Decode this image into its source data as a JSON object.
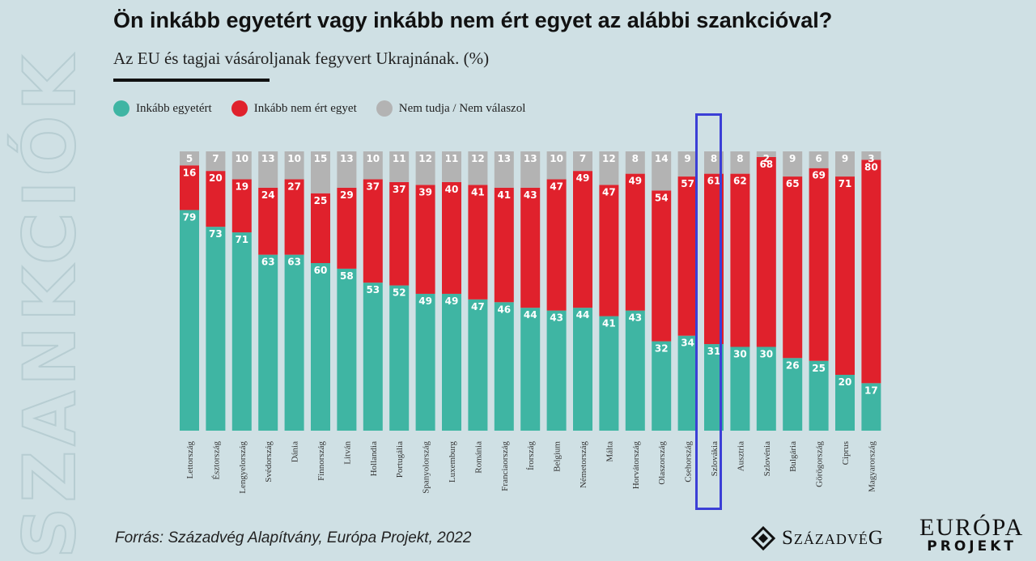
{
  "watermark": "SZANKCIÓK",
  "colors": {
    "background": "#cfe0e4",
    "agree": "#3fb5a3",
    "disagree": "#e0212c",
    "unknown": "#b3b3b3",
    "highlight": "#3b3fd6"
  },
  "source": "Forrás: Századvég Alapítvány, Európa Projekt, 2022",
  "logos": {
    "szazadveg": "SzázadvéG",
    "europa_line1": "EURÓPA",
    "europa_line2": "PROJEKT"
  },
  "chart_data": {
    "type": "bar",
    "stacked": true,
    "title": "Ön inkább egyetért vagy inkább nem ért egyet az alábbi szankcióval?",
    "subtitle": "Az EU és tagjai vásároljanak fegyvert Ukrajnának. (%)",
    "legend_position": "top-left",
    "highlighted_category": "Szlovákia",
    "categories": [
      "Lettország",
      "Észtország",
      "Lengyelország",
      "Svédország",
      "Dánia",
      "Finnország",
      "Litván",
      "Hollandia",
      "Portugália",
      "Spanyolország",
      "Luxemburg",
      "Románia",
      "Franciaország",
      "Írország",
      "Belgium",
      "Németország",
      "Málta",
      "Horvátország",
      "Olaszország",
      "Csehország",
      "Szlovákia",
      "Ausztria",
      "Szlovénia",
      "Bulgária",
      "Görögország",
      "Ciprus",
      "Magyarország"
    ],
    "series": [
      {
        "name": "Inkább egyetért",
        "values": [
          79,
          73,
          71,
          63,
          63,
          60,
          58,
          53,
          52,
          49,
          49,
          47,
          46,
          44,
          43,
          44,
          41,
          43,
          32,
          34,
          31,
          30,
          30,
          26,
          25,
          20,
          17
        ]
      },
      {
        "name": "Inkább nem ért egyet",
        "values": [
          16,
          20,
          19,
          24,
          27,
          25,
          29,
          37,
          37,
          39,
          40,
          41,
          41,
          43,
          47,
          49,
          47,
          49,
          54,
          57,
          61,
          62,
          68,
          65,
          69,
          71,
          80
        ]
      },
      {
        "name": "Nem tudja / Nem válaszol",
        "values": [
          5,
          7,
          10,
          13,
          10,
          15,
          13,
          10,
          11,
          12,
          11,
          12,
          13,
          13,
          10,
          7,
          12,
          8,
          14,
          9,
          8,
          8,
          2,
          9,
          6,
          9,
          3
        ]
      }
    ]
  }
}
